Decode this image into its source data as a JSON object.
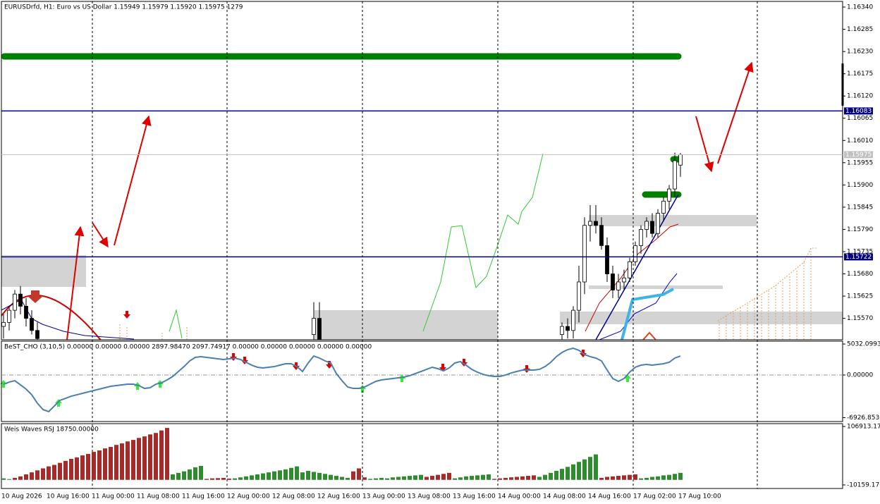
{
  "chart_data": [
    {
      "type": "candlestick",
      "title": "EURUSDrfd, H1:  Euro vs US Dollar  1.15949 1.15979 1.15920 1.15975  1279",
      "ylim": [
        1.15517,
        1.16354
      ],
      "yticks": [
        {
          "value": 1.1634,
          "label": "1.16340"
        },
        1.16285,
        {
          "value": 1.1623,
          "label": "1.16230"
        },
        1.16175,
        {
          "value": 1.1612,
          "label": "1.16120"
        },
        1.16065,
        {
          "value": 1.1601,
          "label": "1.16010"
        },
        1.15955,
        {
          "value": 1.159,
          "label": "1.15900"
        },
        1.15845,
        {
          "value": 1.1579,
          "label": "1.15790"
        },
        1.15735,
        {
          "value": 1.1568,
          "label": "1.15680"
        },
        1.15625,
        {
          "value": 1.1557,
          "label": "1.15570"
        }
      ],
      "x_labels": [
        "10 Aug 2026",
        "10 Aug 16:00",
        "11 Aug 00:00",
        "11 Aug 08:00",
        "11 Aug 16:00",
        "12 Aug 00:00",
        "12 Aug 08:00",
        "12 Aug 16:00",
        "13 Aug 00:00",
        "13 Aug 08:00",
        "13 Aug 16:00",
        "14 Aug 00:00",
        "14 Aug 08:00",
        "14 Aug 16:00",
        "17 Aug 02:00",
        "17 Aug 10:00"
      ],
      "up_color": "#ffffff",
      "down_color": "#000000",
      "levels": [
        1.16083,
        1.15722
      ],
      "level_color": "#000080",
      "last_price": 1.15975,
      "ohlc": [
        [
          1.1555,
          1.1558,
          1.1552,
          1.1556
        ],
        [
          1.1556,
          1.156,
          1.1554,
          1.1559
        ],
        [
          1.1559,
          1.1564,
          1.1557,
          1.1563
        ],
        [
          1.1563,
          1.1565,
          1.1558,
          1.156
        ],
        [
          1.156,
          1.1562,
          1.1555,
          1.1557
        ],
        [
          1.1557,
          1.1559,
          1.1553,
          1.1554
        ],
        [
          1.1554,
          1.1556,
          1.1551,
          1.1552
        ],
        null,
        null,
        null,
        null,
        null,
        null,
        null,
        null,
        null,
        null,
        null,
        null,
        null,
        null,
        null,
        null,
        null,
        null,
        null,
        null,
        null,
        null,
        null,
        null,
        null,
        null,
        null,
        null,
        null,
        null,
        null,
        null,
        null,
        null,
        null,
        null,
        null,
        null,
        null,
        null,
        null,
        null,
        null,
        null,
        null,
        null,
        null,
        null,
        [
          1.1553,
          1.1561,
          1.155,
          1.1557
        ],
        [
          1.1557,
          1.1561,
          1.155,
          1.1551
        ],
        null,
        null,
        null,
        null,
        null,
        null,
        null,
        null,
        null,
        null,
        null,
        null,
        null,
        null,
        null,
        null,
        null,
        null,
        null,
        null,
        null,
        null,
        null,
        null,
        null,
        null,
        null,
        null,
        null,
        null,
        null,
        null,
        null,
        null,
        null,
        null,
        null,
        null,
        null,
        null,
        null,
        null,
        [
          1.1553,
          1.1556,
          1.1551,
          1.1555
        ],
        [
          1.1555,
          1.1557,
          1.1552,
          1.1554
        ],
        [
          1.1554,
          1.156,
          1.1552,
          1.1559
        ],
        [
          1.1559,
          1.157,
          1.1556,
          1.1566
        ],
        [
          1.1566,
          1.1582,
          1.1563,
          1.158
        ],
        [
          1.158,
          1.1585,
          1.1576,
          1.1581
        ],
        [
          1.1581,
          1.1585,
          1.1578,
          1.158
        ],
        [
          1.158,
          1.1582,
          1.1574,
          1.1575
        ],
        [
          1.1575,
          1.1577,
          1.1566,
          1.1568
        ],
        [
          1.1568,
          1.157,
          1.1562,
          1.1564
        ],
        [
          1.1564,
          1.1568,
          1.1562,
          1.1566
        ],
        [
          1.1566,
          1.1569,
          1.1564,
          1.1567
        ],
        [
          1.1567,
          1.1572,
          1.1566,
          1.1571
        ],
        [
          1.1571,
          1.1576,
          1.157,
          1.1575
        ],
        [
          1.1575,
          1.158,
          1.1573,
          1.1579
        ],
        [
          1.1579,
          1.1582,
          1.1577,
          1.1581
        ],
        [
          1.1581,
          1.1583,
          1.1577,
          1.1578
        ],
        [
          1.1578,
          1.1584,
          1.1577,
          1.1583
        ],
        [
          1.1583,
          1.1587,
          1.1581,
          1.1586
        ],
        [
          1.1586,
          1.159,
          1.1584,
          1.1589
        ],
        [
          1.1589,
          1.1598,
          1.1587,
          1.1596
        ],
        [
          1.15949,
          1.15979,
          1.1592,
          1.15975
        ]
      ]
    },
    {
      "type": "line",
      "title": "BeST_CHO (3,10,5)  0.00000 0.00000 0.00000 2897.98470 2097.74917 0.00000 0.00000 0.00000 0.00000 0.00000",
      "ylim": [
        -7557,
        5496
      ],
      "yticks": [
        5032.09936,
        {
          "value": 0,
          "label": "0.00000"
        },
        -6926.85308
      ],
      "color": "#4a7fb0",
      "values": [
        -1490,
        -1150,
        -920,
        -1600,
        -2290,
        -3210,
        -4580,
        -5610,
        -5950,
        -5040,
        -4120,
        -3780,
        -3440,
        -3210,
        -2980,
        -2750,
        -2520,
        -2290,
        -2060,
        -1830,
        -1720,
        -1600,
        -1490,
        -1490,
        -1720,
        -2180,
        -2060,
        -1490,
        -1260,
        -800,
        -230,
        570,
        1370,
        2290,
        2860,
        2980,
        2860,
        2750,
        2630,
        2520,
        2630,
        2750,
        2520,
        2060,
        1600,
        1260,
        1150,
        1260,
        1370,
        1600,
        1830,
        1830,
        1370,
        570,
        1950,
        3090,
        2750,
        2290,
        1950,
        230,
        -920,
        -1950,
        -2180,
        -2180,
        -1950,
        -1490,
        -1030,
        -800,
        -690,
        -570,
        -460,
        -340,
        -110,
        230,
        570,
        920,
        1260,
        1030,
        690,
        1150,
        1950,
        2180,
        1600,
        920,
        460,
        110,
        -110,
        -230,
        -230,
        0,
        340,
        570,
        800,
        800,
        800,
        920,
        1370,
        2060,
        2980,
        3660,
        4120,
        4350,
        4010,
        3320,
        2980,
        2750,
        2290,
        800,
        -570,
        -1030,
        -570,
        460,
        1260,
        1600,
        1720,
        1600,
        1720,
        1830,
        2060,
        2750,
        3090
      ]
    },
    {
      "type": "bar",
      "title": "Weis Waves RSJ  18750.00000",
      "ylim": [
        -17300,
        112625
      ],
      "yticks": [
        {
          "value": 106913.17,
          "label": "106913.170"
        },
        {
          "value": -10159.17,
          "label": "-10159.170"
        }
      ],
      "series": [
        {
          "color": "#2e8b2e",
          "values": [
            3000,
            1500,
            null,
            null,
            null,
            null,
            null,
            null,
            null,
            null,
            null,
            null,
            null,
            null,
            null,
            null,
            null,
            null,
            null,
            null,
            null,
            null,
            null,
            null,
            null,
            null,
            null,
            null,
            null,
            null,
            11000,
            14000,
            17000,
            21000,
            25000,
            28000,
            null,
            null,
            null,
            null,
            null,
            3000,
            5000,
            7000,
            9000,
            11000,
            13000,
            15000,
            17000,
            19000,
            21000,
            24000,
            27000,
            15000,
            18000,
            16000,
            14000,
            12000,
            10000,
            8000,
            6000,
            4000,
            null,
            null,
            null,
            2000,
            3000,
            4000,
            3000,
            5000,
            6000,
            7000,
            8000,
            9000,
            10000,
            null,
            null,
            null,
            null,
            null,
            3000,
            5000,
            7000,
            8000,
            9000,
            10000,
            11000,
            null,
            null,
            null,
            null,
            null,
            null,
            null,
            null,
            6000,
            10000,
            14000,
            18000,
            22000,
            26000,
            31000,
            36000,
            41000,
            46000,
            51000,
            null,
            null,
            null,
            null,
            null,
            null,
            null,
            3000,
            4000,
            6000,
            7000,
            9000,
            10000,
            12000,
            14000
          ]
        },
        {
          "color": "#a52a2a",
          "values": [
            null,
            null,
            4000,
            7000,
            11000,
            15000,
            19000,
            23000,
            27000,
            30000,
            34000,
            38000,
            42000,
            45000,
            49000,
            52000,
            56000,
            59000,
            63000,
            66000,
            70000,
            73000,
            77000,
            80000,
            84000,
            87000,
            91000,
            94000,
            99000,
            104000,
            null,
            null,
            null,
            null,
            null,
            null,
            2000,
            3000,
            3500,
            4000,
            2500,
            null,
            null,
            null,
            null,
            null,
            null,
            null,
            null,
            null,
            null,
            null,
            null,
            null,
            null,
            null,
            null,
            null,
            null,
            null,
            null,
            null,
            17000,
            23000,
            5000,
            null,
            null,
            null,
            null,
            null,
            null,
            null,
            null,
            null,
            null,
            6000,
            8000,
            10000,
            12000,
            14000,
            null,
            null,
            null,
            null,
            null,
            null,
            null,
            2000,
            3000,
            4000,
            5000,
            6000,
            7000,
            8000,
            9000,
            null,
            null,
            null,
            null,
            null,
            null,
            null,
            null,
            null,
            null,
            null,
            4000,
            6000,
            7000,
            8000,
            9000,
            10000,
            11000,
            null,
            null,
            null,
            null,
            null,
            null,
            null,
            null
          ]
        }
      ]
    }
  ]
}
